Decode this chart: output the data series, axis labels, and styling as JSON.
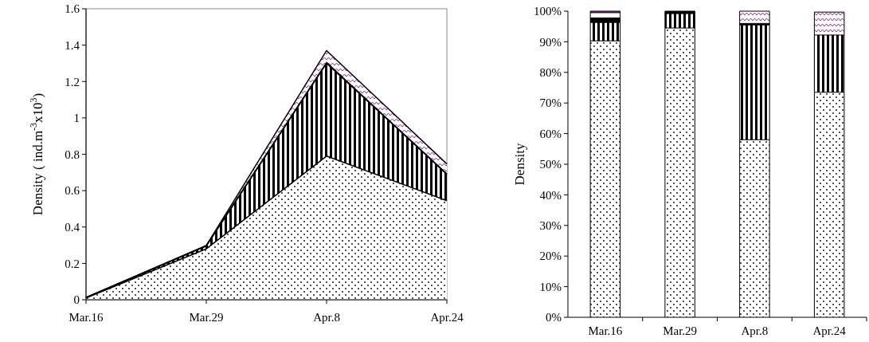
{
  "chart_data": [
    {
      "type": "area",
      "stacked": true,
      "ylabel": "Density ( ind.m$^{-3}$x10$^{3}$)",
      "categories": [
        "Mar.16",
        "Mar.29",
        "Apr.8",
        "Apr.24"
      ],
      "ylim": [
        0,
        1.6
      ],
      "yticks": [
        0,
        0.2,
        0.4,
        0.6,
        0.8,
        1,
        1.2,
        1.4,
        1.6
      ],
      "grid": false,
      "series": [
        {
          "color": "#000000",
          "values": [
            0.01,
            0.28,
            0.79,
            0.545
          ]
        },
        {
          "color": "#000000",
          "values": [
            0.002,
            0.015,
            0.51,
            0.145
          ]
        },
        {
          "color": "#000000",
          "values": [
            0,
            0.003,
            0.005,
            0.002
          ]
        },
        {
          "color": "#993399",
          "values": [
            0,
            0,
            0.065,
            0.055
          ]
        }
      ]
    },
    {
      "type": "bar",
      "stacked": true,
      "ylabel": "Density",
      "categories": [
        "Mar.16",
        "Mar.29",
        "Apr.8",
        "Apr.24"
      ],
      "ylim": [
        0,
        100
      ],
      "yticks": [
        {
          "value": 0,
          "label": "0%"
        },
        {
          "value": 10,
          "label": "10%"
        },
        {
          "value": 20,
          "label": "20%"
        },
        {
          "value": 30,
          "label": "30%"
        },
        {
          "value": 40,
          "label": "40%"
        },
        {
          "value": 50,
          "label": "50%"
        },
        {
          "value": 60,
          "label": "60%"
        },
        {
          "value": 70,
          "label": "70%"
        },
        {
          "value": 80,
          "label": "80%"
        },
        {
          "value": 90,
          "label": "90%"
        },
        {
          "value": 100,
          "label": "100%"
        }
      ],
      "grid": false,
      "series": [
        {
          "color": "#000000",
          "values": [
            90.3,
            94.5,
            58,
            73.5
          ]
        },
        {
          "color": "#000000",
          "values": [
            6,
            4.7,
            37.5,
            18.7
          ]
        },
        {
          "color": "#000000",
          "values": [
            1.5,
            0.8,
            0.5,
            null
          ]
        },
        {
          "color": "#ffffff",
          "values": [
            1.7,
            0,
            0,
            0
          ]
        },
        {
          "color": "#993399",
          "values": [
            0.5,
            0,
            4,
            7.5
          ]
        }
      ]
    }
  ]
}
